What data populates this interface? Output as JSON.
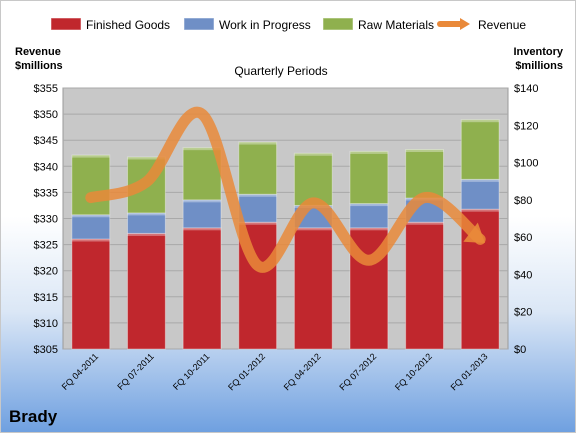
{
  "brand": "Brady",
  "chart_data": {
    "type": "bar",
    "stacked": true,
    "title": "Quarterly Periods",
    "left_axis_title": [
      "Revenue",
      "$millions"
    ],
    "right_axis_title": [
      "Inventory",
      "$millions"
    ],
    "categories": [
      "FQ 04-2011",
      "FQ 07-2011",
      "FQ 10-2011",
      "FQ 01-2012",
      "FQ 04-2012",
      "FQ 07-2012",
      "FQ 10-2012",
      "FQ 01-2013"
    ],
    "series": [
      {
        "name": "Finished Goods",
        "axis": "right",
        "color": "#c0272d",
        "values": [
          59,
          62,
          65,
          68,
          65,
          65,
          68,
          75
        ]
      },
      {
        "name": "Work in Progress",
        "axis": "right",
        "color": "#6f8fc6",
        "values": [
          13,
          11,
          15,
          15,
          12,
          13,
          13,
          16
        ]
      },
      {
        "name": "Raw Materials",
        "axis": "right",
        "color": "#8fb04e",
        "values": [
          32,
          30,
          28,
          28,
          28,
          28,
          26,
          32
        ]
      },
      {
        "name": "Revenue",
        "axis": "left",
        "type": "line",
        "color": "#e9893a",
        "values": [
          334,
          337,
          350,
          321,
          333,
          322,
          334,
          326
        ]
      }
    ],
    "left_ylim": [
      305,
      355
    ],
    "left_ticks": [
      "$305",
      "$310",
      "$315",
      "$320",
      "$325",
      "$330",
      "$335",
      "$340",
      "$345",
      "$350",
      "$355"
    ],
    "right_ylim": [
      0,
      140
    ],
    "right_ticks": [
      "$0",
      "$20",
      "$40",
      "$60",
      "$80",
      "$100",
      "$120",
      "$140"
    ],
    "legend_position": "top",
    "grid": true
  }
}
